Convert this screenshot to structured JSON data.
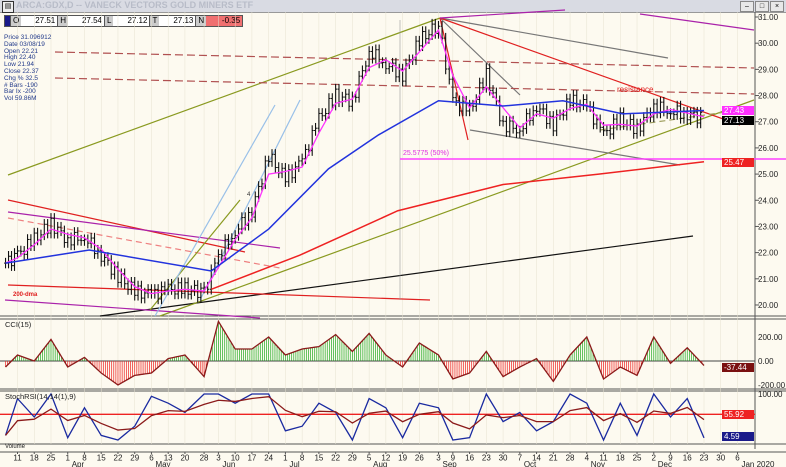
{
  "window": {
    "title": "ARCA:GDX,D -- VANECK VECTORS GOLD MINERS ETF"
  },
  "quote": {
    "o_label": "O",
    "o": "27.51",
    "h_label": "H",
    "h": "27.54",
    "l_label": "L",
    "l": "27.12",
    "t_label": "T",
    "t": "27.13",
    "n_label": "N",
    "n": "-0.35"
  },
  "info": [
    "Price 31.096912",
    "Date 03/08/19",
    "Open 22.21",
    "High 22.40",
    "Low 21.94",
    "Close 22.37",
    "Chg % 32.5",
    "# Bars -190",
    "Bar Ix -200",
    "Vol 59.86M"
  ],
  "annotations": {
    "resistance": "resistance",
    "fib": "25.5775 (50%)",
    "dma": "200-dma",
    "wave": "4"
  },
  "price_tags": {
    "last_ma": "27.43",
    "last": "27.13",
    "ma200": "25.47"
  },
  "indicator_tags": {
    "cci": "-37.44",
    "stoch_signal": "55.92",
    "stoch": "4.59"
  },
  "colors": {
    "background": "#fdfaf0",
    "ma_short": "#ff33ff",
    "ma50": "#2233dd",
    "ma200": "#ee2222",
    "cci_pos": "#22aa22",
    "cci_neg": "#ee2222",
    "stoch": "#1a2aa0",
    "signal": "#8b1a1a"
  },
  "chart_data": [
    {
      "type": "ohlc",
      "title": "ARCA:GDX,D",
      "ylim": [
        19.8,
        31.2
      ],
      "yticks": [
        "31.00",
        "30.00",
        "29.00",
        "28.00",
        "27.00",
        "26.00",
        "25.00",
        "24.00",
        "23.00",
        "22.00",
        "21.00",
        "20.00"
      ],
      "x": [
        "2019-03-06",
        "2019-03-11",
        "2019-03-18",
        "2019-03-25",
        "2019-04-01",
        "2019-04-08",
        "2019-04-15",
        "2019-04-22",
        "2019-04-29",
        "2019-05-06",
        "2019-05-13",
        "2019-05-20",
        "2019-05-28",
        "2019-06-03",
        "2019-06-10",
        "2019-06-17",
        "2019-06-24",
        "2019-07-01",
        "2019-07-08",
        "2019-07-15",
        "2019-07-22",
        "2019-07-29",
        "2019-08-05",
        "2019-08-12",
        "2019-08-19",
        "2019-08-26",
        "2019-09-03",
        "2019-09-09",
        "2019-09-16",
        "2019-09-23",
        "2019-09-30",
        "2019-10-07",
        "2019-10-14",
        "2019-10-21",
        "2019-10-28",
        "2019-11-04",
        "2019-11-11",
        "2019-11-18",
        "2019-11-25",
        "2019-12-02",
        "2019-12-09",
        "2019-12-16",
        "2019-12-23"
      ],
      "close": [
        21.6,
        21.9,
        22.5,
        23.1,
        22.5,
        22.6,
        21.9,
        21.1,
        20.5,
        20.4,
        20.6,
        20.6,
        20.5,
        21.9,
        22.8,
        23.6,
        25.7,
        24.8,
        25.5,
        27.1,
        28.0,
        27.8,
        29.7,
        29.2,
        28.8,
        30.1,
        30.7,
        27.8,
        27.4,
        28.8,
        26.9,
        26.7,
        27.6,
        26.9,
        27.8,
        27.6,
        26.5,
        27.1,
        26.7,
        27.6,
        27.4,
        27.3,
        27.13
      ],
      "ma50": [
        [
          "2019-03-06",
          21.6
        ],
        [
          "2019-04-10",
          22.1
        ],
        [
          "2019-05-31",
          21.3
        ],
        [
          "2019-06-24",
          22.9
        ],
        [
          "2019-07-19",
          25.2
        ],
        [
          "2019-08-09",
          26.5
        ],
        [
          "2019-09-03",
          27.8
        ],
        [
          "2019-09-30",
          27.6
        ],
        [
          "2019-10-25",
          27.8
        ],
        [
          "2019-11-19",
          27.3
        ],
        [
          "2019-12-23",
          27.43
        ]
      ],
      "ma200": [
        [
          "2019-05-31",
          20.6
        ],
        [
          "2019-07-07",
          21.9
        ],
        [
          "2019-08-17",
          23.6
        ],
        [
          "2019-09-30",
          24.6
        ],
        [
          "2019-11-09",
          25.0
        ],
        [
          "2019-12-23",
          25.47
        ]
      ],
      "hlines": [
        {
          "label": "25.5775 (50%)",
          "value": 25.5775
        }
      ]
    },
    {
      "type": "bar",
      "title": "CCI(15)",
      "ylim": [
        -250,
        350
      ],
      "yticks": [
        "200.00",
        "0.00",
        "-200.00"
      ],
      "values": [
        -50,
        50,
        0,
        180,
        -50,
        30,
        -100,
        -200,
        -120,
        -100,
        20,
        50,
        -130,
        330,
        100,
        100,
        200,
        50,
        100,
        120,
        220,
        80,
        230,
        50,
        -50,
        150,
        50,
        -150,
        -100,
        80,
        -130,
        -50,
        20,
        -170,
        50,
        200,
        -150,
        -50,
        -120,
        200,
        -20,
        110,
        -37.44
      ]
    },
    {
      "type": "line",
      "title": "StochRSI(14,14(1),9)",
      "ylim": [
        0,
        100
      ],
      "yticks": [
        "100.00",
        "55.92"
      ],
      "values": [
        10,
        90,
        50,
        100,
        5,
        70,
        10,
        0,
        30,
        95,
        80,
        60,
        100,
        100,
        80,
        100,
        100,
        20,
        30,
        80,
        60,
        0,
        90,
        70,
        5,
        80,
        70,
        0,
        5,
        100,
        40,
        60,
        20,
        40,
        100,
        80,
        0,
        80,
        10,
        100,
        50,
        90,
        4.59
      ]
    },
    {
      "type": "axis",
      "title": "Volume",
      "ticks": [
        [
          "11",
          "2019-03-11",
          ""
        ],
        [
          "18",
          "2019-03-18",
          ""
        ],
        [
          "25",
          "2019-03-25",
          ""
        ],
        [
          "1",
          "2019-04-01",
          "Apr"
        ],
        [
          "8",
          "2019-04-08",
          ""
        ],
        [
          "15",
          "2019-04-15",
          ""
        ],
        [
          "22",
          "2019-04-22",
          ""
        ],
        [
          "29",
          "2019-04-29",
          ""
        ],
        [
          "6",
          "2019-05-06",
          "May"
        ],
        [
          "13",
          "2019-05-13",
          ""
        ],
        [
          "20",
          "2019-05-20",
          ""
        ],
        [
          "28",
          "2019-05-28",
          ""
        ],
        [
          "3",
          "2019-06-03",
          "Jun"
        ],
        [
          "10",
          "2019-06-10",
          ""
        ],
        [
          "17",
          "2019-06-17",
          ""
        ],
        [
          "24",
          "2019-06-24",
          ""
        ],
        [
          "1",
          "2019-07-01",
          "Jul"
        ],
        [
          "8",
          "2019-07-08",
          ""
        ],
        [
          "15",
          "2019-07-15",
          ""
        ],
        [
          "22",
          "2019-07-22",
          ""
        ],
        [
          "29",
          "2019-07-29",
          ""
        ],
        [
          "5",
          "2019-08-05",
          "Aug"
        ],
        [
          "12",
          "2019-08-12",
          ""
        ],
        [
          "19",
          "2019-08-19",
          ""
        ],
        [
          "26",
          "2019-08-26",
          ""
        ],
        [
          "3",
          "2019-09-03",
          "Sep"
        ],
        [
          "9",
          "2019-09-09",
          ""
        ],
        [
          "16",
          "2019-09-16",
          ""
        ],
        [
          "23",
          "2019-09-23",
          ""
        ],
        [
          "30",
          "2019-09-30",
          ""
        ],
        [
          "7",
          "2019-10-07",
          "Oct"
        ],
        [
          "14",
          "2019-10-14",
          ""
        ],
        [
          "21",
          "2019-10-21",
          ""
        ],
        [
          "28",
          "2019-10-28",
          ""
        ],
        [
          "4",
          "2019-11-04",
          "Nov"
        ],
        [
          "11",
          "2019-11-11",
          ""
        ],
        [
          "18",
          "2019-11-18",
          ""
        ],
        [
          "25",
          "2019-11-25",
          ""
        ],
        [
          "2",
          "2019-12-02",
          "Dec"
        ],
        [
          "9",
          "2019-12-09",
          ""
        ],
        [
          "16",
          "2019-12-16",
          ""
        ],
        [
          "23",
          "2019-12-23",
          ""
        ],
        [
          "30",
          "2019-12-30",
          ""
        ],
        [
          "6",
          "2020-01-06",
          "Jan 2020"
        ]
      ]
    }
  ]
}
